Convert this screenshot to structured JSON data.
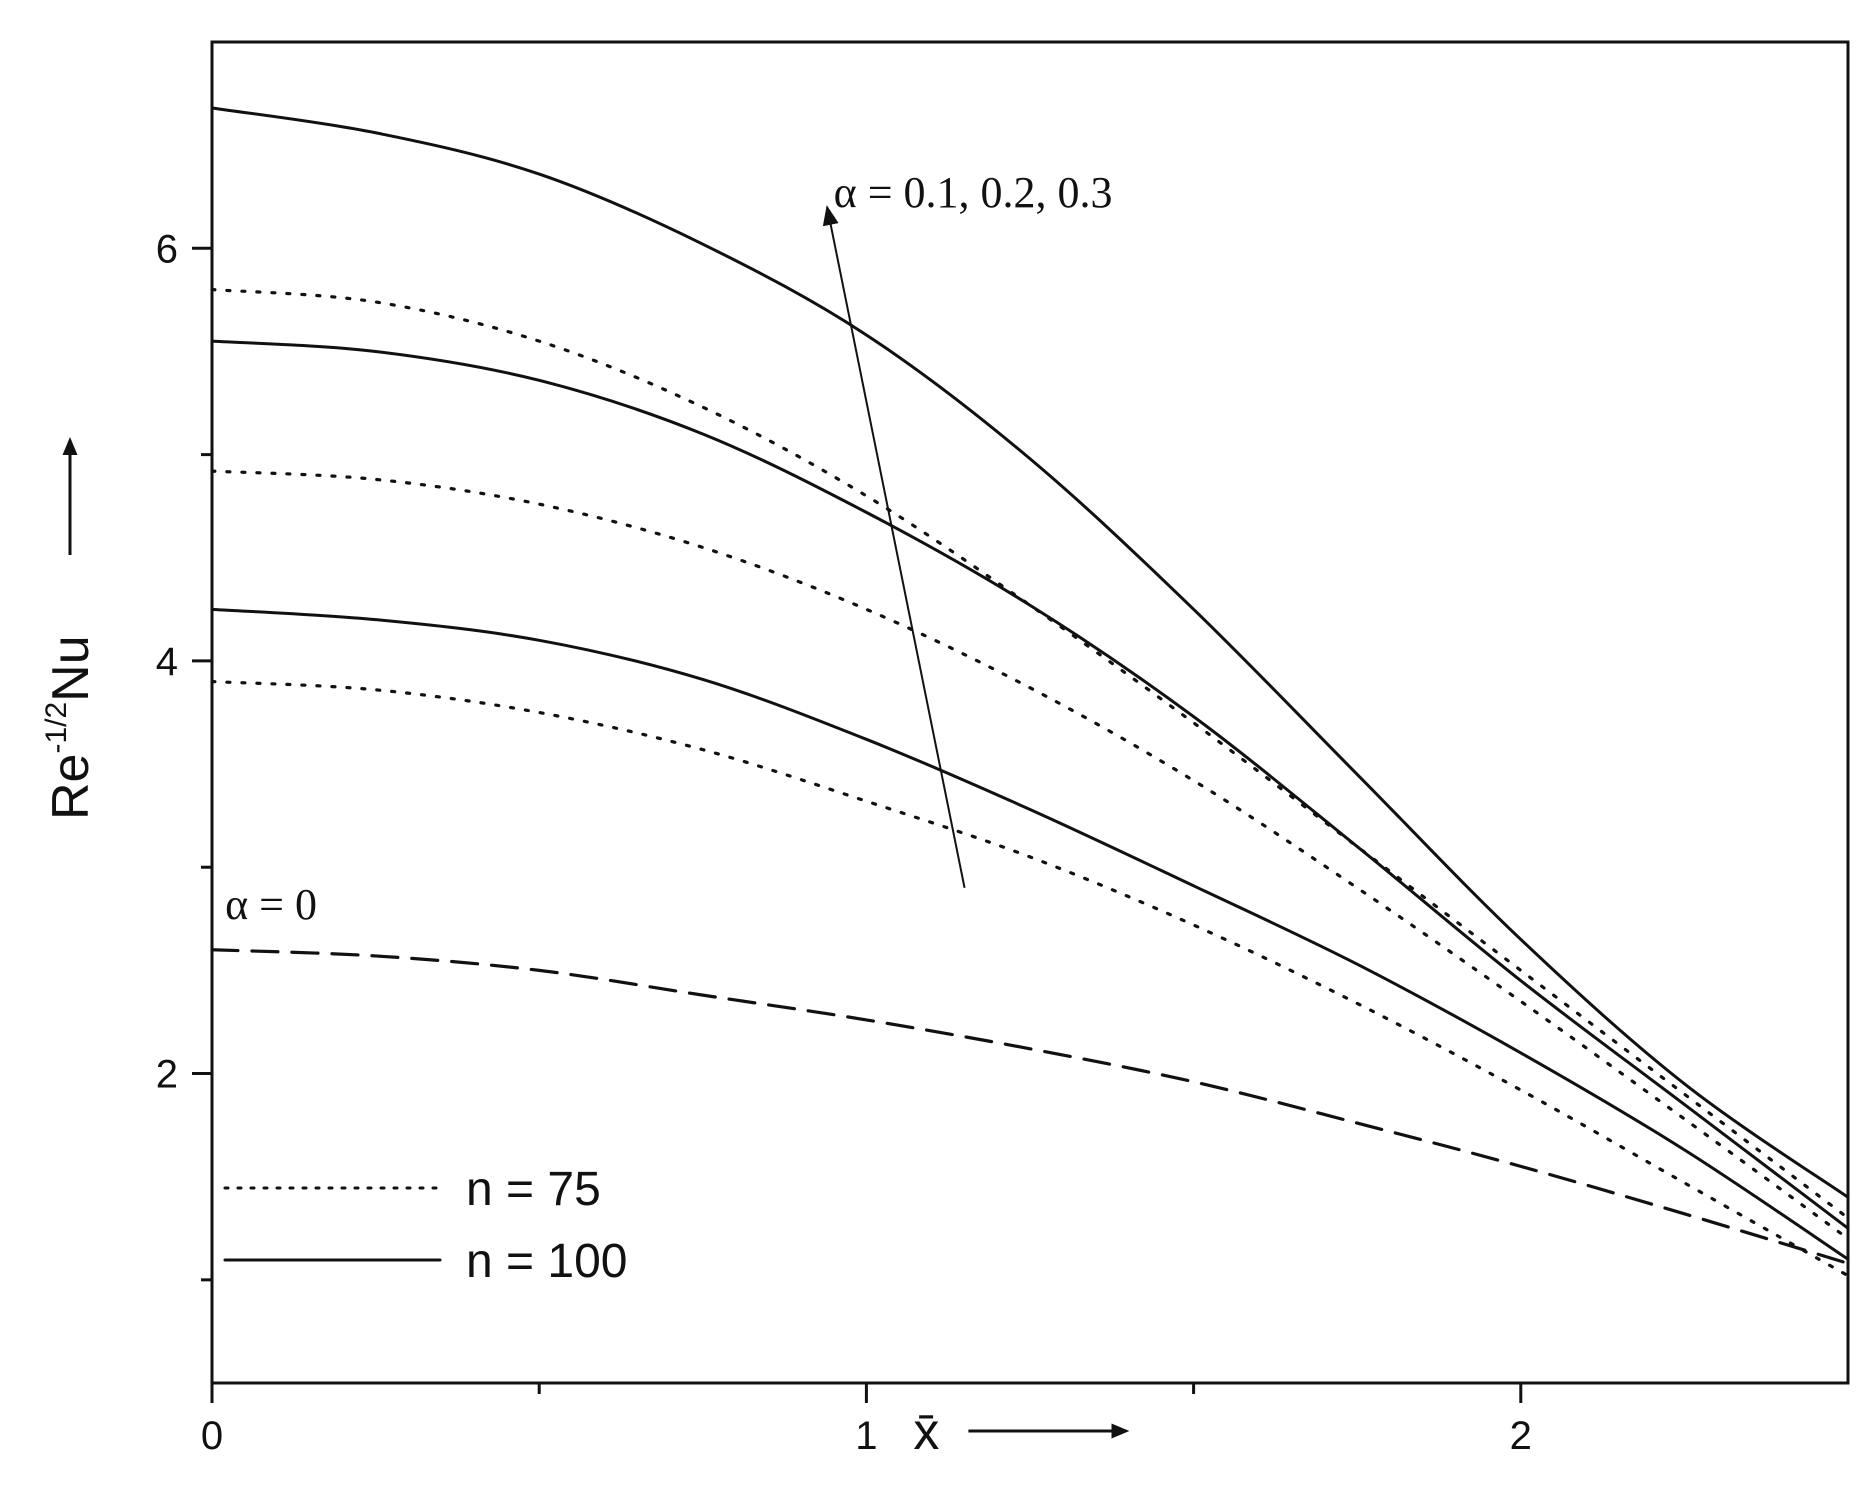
{
  "chart_data": {
    "type": "line",
    "xlabel": "x̄",
    "ylabel_main": "Re",
    "ylabel_sup": "-1/2",
    "ylabel_tail": "Nu",
    "xlim": [
      0,
      2.5
    ],
    "ylim": [
      0.5,
      7
    ],
    "x_ticks": [
      {
        "value": 0,
        "label": "0"
      },
      {
        "value": 1,
        "label": "1"
      },
      {
        "value": 2,
        "label": "2"
      }
    ],
    "x_minor_ticks": [
      0.5,
      1.5
    ],
    "y_ticks": [
      {
        "value": 2,
        "label": "2"
      },
      {
        "value": 4,
        "label": "4"
      },
      {
        "value": 6,
        "label": "6"
      }
    ],
    "y_minor_ticks": [
      1,
      3,
      5
    ],
    "grid": false,
    "legend_position": "bottom-left",
    "legend": [
      {
        "label": "n = 75",
        "style": "dotted"
      },
      {
        "label": "n = 100",
        "style": "solid"
      }
    ],
    "annotations": [
      {
        "text": "α = 0.1, 0.2, 0.3",
        "x": 0.95,
        "y": 6.2
      },
      {
        "text": "α = 0",
        "x": 0.02,
        "y": 2.75
      }
    ],
    "arrow": {
      "from": [
        1.15,
        2.9
      ],
      "to": [
        0.94,
        6.2
      ]
    },
    "series": [
      {
        "style": "dashed",
        "x": [
          0,
          0.25,
          0.5,
          0.75,
          1.0,
          1.25,
          1.5,
          1.75,
          2.0,
          2.25,
          2.5
        ],
        "y": [
          2.6,
          2.57,
          2.5,
          2.38,
          2.26,
          2.12,
          1.96,
          1.76,
          1.55,
          1.32,
          1.08
        ]
      },
      {
        "style": "dotted",
        "x": [
          0,
          0.25,
          0.5,
          0.75,
          1.0,
          1.25,
          1.5,
          1.75,
          2.0,
          2.25,
          2.5
        ],
        "y": [
          3.9,
          3.86,
          3.75,
          3.57,
          3.32,
          3.05,
          2.72,
          2.34,
          1.92,
          1.47,
          1.02
        ]
      },
      {
        "style": "solid",
        "x": [
          0,
          0.25,
          0.5,
          0.75,
          1.0,
          1.25,
          1.5,
          1.75,
          2.0,
          2.25,
          2.5
        ],
        "y": [
          4.25,
          4.2,
          4.1,
          3.91,
          3.62,
          3.28,
          2.91,
          2.53,
          2.1,
          1.63,
          1.1
        ]
      },
      {
        "style": "dotted",
        "x": [
          0,
          0.25,
          0.5,
          0.75,
          1.0,
          1.25,
          1.5,
          1.75,
          2.0,
          2.25,
          2.5
        ],
        "y": [
          4.92,
          4.88,
          4.76,
          4.55,
          4.25,
          3.87,
          3.42,
          2.9,
          2.35,
          1.78,
          1.2
        ]
      },
      {
        "style": "solid",
        "x": [
          0,
          0.25,
          0.5,
          0.75,
          1.0,
          1.25,
          1.5,
          1.75,
          2.0,
          2.25,
          2.5
        ],
        "y": [
          5.55,
          5.5,
          5.36,
          5.1,
          4.72,
          4.27,
          3.73,
          3.1,
          2.45,
          1.85,
          1.25
        ]
      },
      {
        "style": "dotted",
        "x": [
          0,
          0.25,
          0.5,
          0.75,
          1.0,
          1.25,
          1.5,
          1.75,
          2.0,
          2.25,
          2.5
        ],
        "y": [
          5.8,
          5.74,
          5.55,
          5.23,
          4.8,
          4.27,
          3.7,
          3.1,
          2.5,
          1.9,
          1.3
        ]
      },
      {
        "style": "solid",
        "x": [
          0,
          0.25,
          0.5,
          0.75,
          1.0,
          1.25,
          1.5,
          1.75,
          2.0,
          2.25,
          2.5
        ],
        "y": [
          6.68,
          6.56,
          6.36,
          6.02,
          5.58,
          4.98,
          4.25,
          3.45,
          2.65,
          1.95,
          1.4
        ]
      }
    ]
  }
}
